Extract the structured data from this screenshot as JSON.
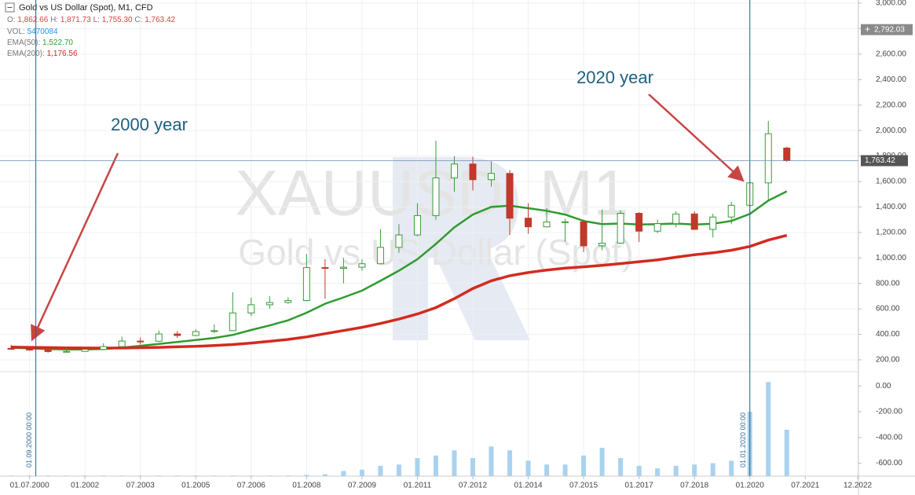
{
  "chart_data": {
    "type": "candlestick",
    "title_parts": [
      "Gold vs US Dollar (Spot),",
      "M1,",
      "CFD"
    ],
    "ohlc_legend": [
      "O:",
      "1,862.66",
      "H:",
      "1,871.73",
      "L:",
      "1,755.30",
      "C:",
      "1,763.42"
    ],
    "vol_legend": [
      "VOL:",
      "5470084"
    ],
    "watermark": {
      "symbol": "XAUUSD, M1",
      "name": "Gold vs US Dollar (Spot)"
    },
    "annotations": [
      "2000 year",
      "2020 year"
    ],
    "x": [
      2000.0,
      2000.5,
      2001.0,
      2001.5,
      2002.0,
      2002.5,
      2003.0,
      2003.5,
      2004.0,
      2004.5,
      2005.0,
      2005.5,
      2006.0,
      2006.5,
      2007.0,
      2007.5,
      2008.0,
      2008.5,
      2009.0,
      2009.5,
      2010.0,
      2010.5,
      2011.0,
      2011.5,
      2012.0,
      2012.5,
      2013.0,
      2013.5,
      2014.0,
      2014.5,
      2015.0,
      2015.5,
      2016.0,
      2016.5,
      2017.0,
      2017.5,
      2018.0,
      2018.5,
      2019.0,
      2019.5,
      2020.0,
      2020.5,
      2021.0
    ],
    "open": [
      290,
      283,
      277,
      265,
      266,
      282,
      304,
      347,
      346,
      403,
      391,
      422,
      429,
      568,
      632,
      650,
      665,
      924,
      918,
      927,
      954,
      1083,
      1180,
      1332,
      1628,
      1737,
      1614,
      1663,
      1312,
      1244,
      1282,
      1283,
      1095,
      1116,
      1350,
      1210,
      1269,
      1345,
      1224,
      1321,
      1413,
      1589,
      1862.66
    ],
    "high": [
      316,
      294,
      280,
      298,
      286,
      330,
      382,
      376,
      430,
      425,
      440,
      477,
      730,
      690,
      700,
      690,
      1032,
      990,
      1000,
      990,
      1226,
      1265,
      1430,
      1920,
      1800,
      1795,
      1760,
      1690,
      1430,
      1390,
      1307,
      1300,
      1380,
      1375,
      1360,
      1300,
      1366,
      1365,
      1346,
      1440,
      1590,
      2075,
      1871.73
    ],
    "low": [
      278,
      270,
      256,
      260,
      262,
      278,
      300,
      320,
      340,
      372,
      385,
      410,
      425,
      543,
      600,
      640,
      660,
      680,
      800,
      900,
      950,
      1040,
      1170,
      1300,
      1520,
      1530,
      1560,
      1180,
      1190,
      1240,
      1130,
      1045,
      1060,
      1110,
      1125,
      1195,
      1240,
      1220,
      1160,
      1265,
      1400,
      1450,
      1755.3
    ],
    "close": [
      283,
      277,
      265,
      266,
      282,
      304,
      347,
      346,
      403,
      391,
      422,
      429,
      568,
      632,
      650,
      665,
      924,
      918,
      927,
      954,
      1083,
      1180,
      1332,
      1628,
      1737,
      1614,
      1663,
      1312,
      1244,
      1282,
      1283,
      1095,
      1116,
      1350,
      1210,
      1269,
      1345,
      1224,
      1321,
      1413,
      1589,
      1975,
      1763.42
    ],
    "up_color": "#3a9a3a",
    "down_color": "#c0392b",
    "series": [
      {
        "name": "EMA(50):",
        "value_label": "1,522.70",
        "color": "#2e9b2e",
        "values": [
          295,
          290,
          285,
          282,
          282,
          285,
          295,
          310,
          325,
          340,
          355,
          372,
          395,
          434,
          470,
          510,
          570,
          640,
          690,
          743,
          820,
          900,
          990,
          1110,
          1240,
          1340,
          1400,
          1410,
          1390,
          1370,
          1340,
          1290,
          1265,
          1270,
          1262,
          1265,
          1270,
          1262,
          1268,
          1290,
          1345,
          1450,
          1522.7
        ]
      },
      {
        "name": "EMA(200):",
        "value_label": "1,176.56",
        "color": "#d42a1e",
        "values": [
          300,
          298,
          296,
          294,
          293,
          292,
          293,
          295,
          298,
          302,
          306,
          312,
          320,
          332,
          345,
          360,
          380,
          405,
          430,
          455,
          485,
          520,
          560,
          610,
          680,
          760,
          820,
          860,
          885,
          905,
          920,
          930,
          942,
          955,
          970,
          985,
          1005,
          1025,
          1040,
          1060,
          1090,
          1140,
          1176.56
        ]
      }
    ],
    "volume": {
      "color": "#a9d2ef",
      "values": [
        -695,
        -695,
        -695,
        -695,
        -695,
        -695,
        -695,
        -695,
        -695,
        -695,
        -695,
        -695,
        -695,
        -695,
        -695,
        -695,
        -690,
        -685,
        -660,
        -650,
        -620,
        -610,
        -560,
        -540,
        -500,
        -560,
        -470,
        -500,
        -580,
        -610,
        -610,
        -540,
        -480,
        -560,
        -620,
        -640,
        -620,
        -610,
        -600,
        -580,
        -200,
        30,
        -340
      ],
      "ylim": [
        -700,
        80
      ],
      "yticks": [
        {
          "value": 0,
          "label": "0.00"
        },
        {
          "value": -200,
          "label": "-200.00"
        },
        {
          "value": -400,
          "label": "-400.00"
        },
        {
          "value": -600,
          "label": "-600.00"
        }
      ]
    },
    "xlim": [
      1999.7,
      2022.94
    ],
    "xticks": [
      {
        "value": 2000.5,
        "label": "01.07.2000"
      },
      {
        "value": 2002.0,
        "label": "01.2002"
      },
      {
        "value": 2003.5,
        "label": "07.2003"
      },
      {
        "value": 2005.0,
        "label": "01.2005"
      },
      {
        "value": 2006.5,
        "label": "07.2006"
      },
      {
        "value": 2008.0,
        "label": "01.2008"
      },
      {
        "value": 2009.5,
        "label": "07.2009"
      },
      {
        "value": 2011.0,
        "label": "01.2011"
      },
      {
        "value": 2012.5,
        "label": "07.2012"
      },
      {
        "value": 2014.0,
        "label": "01.2014"
      },
      {
        "value": 2015.5,
        "label": "07.2015"
      },
      {
        "value": 2017.0,
        "label": "01.2017"
      },
      {
        "value": 2018.5,
        "label": "07.2018"
      },
      {
        "value": 2020.0,
        "label": "01.2020"
      },
      {
        "value": 2021.5,
        "label": "07.2021"
      },
      {
        "value": 2022.92,
        "label": "12.2022"
      }
    ],
    "ylim": [
      130,
      3000
    ],
    "yticks": [
      {
        "value": 200,
        "label": "200.00"
      },
      {
        "value": 400,
        "label": "400.00"
      },
      {
        "value": 600,
        "label": "600.00"
      },
      {
        "value": 800,
        "label": "800.00"
      },
      {
        "value": 1000,
        "label": "1,000.00"
      },
      {
        "value": 1200,
        "label": "1,200.00"
      },
      {
        "value": 1400,
        "label": "1,400.00"
      },
      {
        "value": 1600,
        "label": "1,600.00"
      },
      {
        "value": 1800,
        "label": "1,800.00"
      },
      {
        "value": 2000,
        "label": "2,000.00"
      },
      {
        "value": 2200,
        "label": "2,200.00"
      },
      {
        "value": 2400,
        "label": "2,400.00"
      },
      {
        "value": 2600,
        "label": "2,600.00"
      },
      {
        "value": 2800,
        "label": "2,800.00"
      },
      {
        "value": 3000,
        "label": "3,000.00"
      }
    ],
    "grid": true,
    "last_price": {
      "value": 1763.42,
      "label": "1,763.42"
    },
    "crosshair_price": {
      "value": 2792.03,
      "label": "2,792.03"
    },
    "vlines": [
      {
        "x": 2000.67,
        "label": "01.09.2000 00:00"
      },
      {
        "x": 2020.0,
        "label": "01.01.2020 00:00"
      }
    ]
  }
}
